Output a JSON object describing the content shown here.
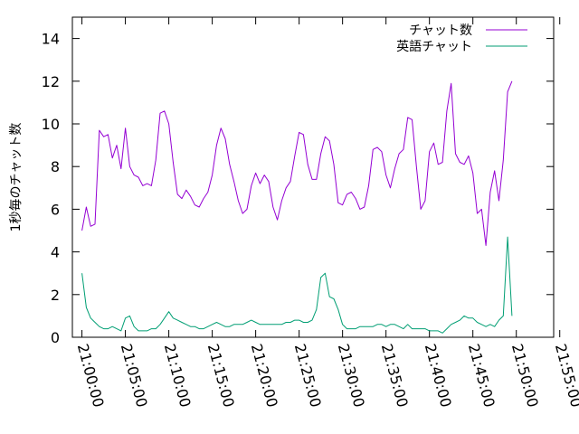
{
  "chart_data": {
    "type": "line",
    "ylabel": "1秒毎のチャット数",
    "ylim": [
      0,
      15
    ],
    "yticks": [
      0,
      2,
      4,
      6,
      8,
      10,
      12,
      14
    ],
    "xticks": [
      "21:00:00",
      "21:05:00",
      "21:10:00",
      "21:15:00",
      "21:20:00",
      "21:25:00",
      "21:30:00",
      "21:35:00",
      "21:40:00",
      "21:45:00",
      "21:50:00",
      "21:55:00"
    ],
    "xlim_minutes": [
      -1.1,
      54.3
    ],
    "x_unit": "minutes after 21:00:00",
    "grid": false,
    "legend_position": "top-right",
    "series": [
      {
        "name": "チャット数",
        "color": "#9400d3",
        "points": [
          [
            0.0,
            5.0
          ],
          [
            0.5,
            6.1
          ],
          [
            1.0,
            5.2
          ],
          [
            1.5,
            5.3
          ],
          [
            2.0,
            9.7
          ],
          [
            2.5,
            9.4
          ],
          [
            3.0,
            9.5
          ],
          [
            3.5,
            8.4
          ],
          [
            4.0,
            9.0
          ],
          [
            4.5,
            7.9
          ],
          [
            5.0,
            9.8
          ],
          [
            5.5,
            8.0
          ],
          [
            6.0,
            7.6
          ],
          [
            6.5,
            7.5
          ],
          [
            7.0,
            7.1
          ],
          [
            7.5,
            7.2
          ],
          [
            8.0,
            7.1
          ],
          [
            8.5,
            8.3
          ],
          [
            9.0,
            10.5
          ],
          [
            9.5,
            10.6
          ],
          [
            10.0,
            10.0
          ],
          [
            10.5,
            8.2
          ],
          [
            11.0,
            6.7
          ],
          [
            11.5,
            6.5
          ],
          [
            12.0,
            6.9
          ],
          [
            12.5,
            6.6
          ],
          [
            13.0,
            6.2
          ],
          [
            13.5,
            6.1
          ],
          [
            14.0,
            6.5
          ],
          [
            14.5,
            6.8
          ],
          [
            15.0,
            7.6
          ],
          [
            15.5,
            9.0
          ],
          [
            16.0,
            9.8
          ],
          [
            16.5,
            9.3
          ],
          [
            17.0,
            8.1
          ],
          [
            17.5,
            7.3
          ],
          [
            18.0,
            6.4
          ],
          [
            18.5,
            5.8
          ],
          [
            19.0,
            6.0
          ],
          [
            19.5,
            7.1
          ],
          [
            20.0,
            7.7
          ],
          [
            20.5,
            7.2
          ],
          [
            21.0,
            7.6
          ],
          [
            21.5,
            7.3
          ],
          [
            22.0,
            6.1
          ],
          [
            22.5,
            5.5
          ],
          [
            23.0,
            6.4
          ],
          [
            23.5,
            7.0
          ],
          [
            24.0,
            7.3
          ],
          [
            24.5,
            8.5
          ],
          [
            25.0,
            9.6
          ],
          [
            25.5,
            9.5
          ],
          [
            26.0,
            8.1
          ],
          [
            26.5,
            7.4
          ],
          [
            27.0,
            7.4
          ],
          [
            27.5,
            8.6
          ],
          [
            28.0,
            9.4
          ],
          [
            28.5,
            9.2
          ],
          [
            29.0,
            8.1
          ],
          [
            29.5,
            6.3
          ],
          [
            30.0,
            6.2
          ],
          [
            30.5,
            6.7
          ],
          [
            31.0,
            6.8
          ],
          [
            31.5,
            6.5
          ],
          [
            32.0,
            6.0
          ],
          [
            32.5,
            6.1
          ],
          [
            33.0,
            7.1
          ],
          [
            33.5,
            8.8
          ],
          [
            34.0,
            8.9
          ],
          [
            34.5,
            8.7
          ],
          [
            35.0,
            7.6
          ],
          [
            35.5,
            7.0
          ],
          [
            36.0,
            7.9
          ],
          [
            36.5,
            8.6
          ],
          [
            37.0,
            8.8
          ],
          [
            37.5,
            10.3
          ],
          [
            38.0,
            10.2
          ],
          [
            38.5,
            8.0
          ],
          [
            39.0,
            6.0
          ],
          [
            39.5,
            6.4
          ],
          [
            40.0,
            8.7
          ],
          [
            40.5,
            9.1
          ],
          [
            41.0,
            8.1
          ],
          [
            41.5,
            8.2
          ],
          [
            42.0,
            10.6
          ],
          [
            42.5,
            11.9
          ],
          [
            43.0,
            8.6
          ],
          [
            43.5,
            8.2
          ],
          [
            44.0,
            8.1
          ],
          [
            44.5,
            8.5
          ],
          [
            45.0,
            7.7
          ],
          [
            45.5,
            5.8
          ],
          [
            46.0,
            6.0
          ],
          [
            46.5,
            4.3
          ],
          [
            47.0,
            6.8
          ],
          [
            47.5,
            7.8
          ],
          [
            48.0,
            6.4
          ],
          [
            48.5,
            8.3
          ],
          [
            49.0,
            11.5
          ],
          [
            49.5,
            12.0
          ]
        ]
      },
      {
        "name": "英語チャット",
        "color": "#009e73",
        "points": [
          [
            0.0,
            3.0
          ],
          [
            0.5,
            1.4
          ],
          [
            1.0,
            0.9
          ],
          [
            1.5,
            0.7
          ],
          [
            2.0,
            0.5
          ],
          [
            2.5,
            0.4
          ],
          [
            3.0,
            0.4
          ],
          [
            3.5,
            0.5
          ],
          [
            4.0,
            0.4
          ],
          [
            4.5,
            0.3
          ],
          [
            5.0,
            0.9
          ],
          [
            5.5,
            1.0
          ],
          [
            6.0,
            0.5
          ],
          [
            6.5,
            0.3
          ],
          [
            7.0,
            0.3
          ],
          [
            7.5,
            0.3
          ],
          [
            8.0,
            0.4
          ],
          [
            8.5,
            0.4
          ],
          [
            9.0,
            0.6
          ],
          [
            9.5,
            0.9
          ],
          [
            10.0,
            1.2
          ],
          [
            10.5,
            0.9
          ],
          [
            11.0,
            0.8
          ],
          [
            11.5,
            0.7
          ],
          [
            12.0,
            0.6
          ],
          [
            12.5,
            0.5
          ],
          [
            13.0,
            0.5
          ],
          [
            13.5,
            0.4
          ],
          [
            14.0,
            0.4
          ],
          [
            14.5,
            0.5
          ],
          [
            15.0,
            0.6
          ],
          [
            15.5,
            0.7
          ],
          [
            16.0,
            0.6
          ],
          [
            16.5,
            0.5
          ],
          [
            17.0,
            0.5
          ],
          [
            17.5,
            0.6
          ],
          [
            18.0,
            0.6
          ],
          [
            18.5,
            0.6
          ],
          [
            19.0,
            0.7
          ],
          [
            19.5,
            0.8
          ],
          [
            20.0,
            0.7
          ],
          [
            20.5,
            0.6
          ],
          [
            21.0,
            0.6
          ],
          [
            21.5,
            0.6
          ],
          [
            22.0,
            0.6
          ],
          [
            22.5,
            0.6
          ],
          [
            23.0,
            0.6
          ],
          [
            23.5,
            0.7
          ],
          [
            24.0,
            0.7
          ],
          [
            24.5,
            0.8
          ],
          [
            25.0,
            0.8
          ],
          [
            25.5,
            0.7
          ],
          [
            26.0,
            0.7
          ],
          [
            26.5,
            0.8
          ],
          [
            27.0,
            1.3
          ],
          [
            27.5,
            2.8
          ],
          [
            28.0,
            3.0
          ],
          [
            28.5,
            1.9
          ],
          [
            29.0,
            1.8
          ],
          [
            29.5,
            1.3
          ],
          [
            30.0,
            0.6
          ],
          [
            30.5,
            0.4
          ],
          [
            31.0,
            0.4
          ],
          [
            31.5,
            0.4
          ],
          [
            32.0,
            0.5
          ],
          [
            32.5,
            0.5
          ],
          [
            33.0,
            0.5
          ],
          [
            33.5,
            0.5
          ],
          [
            34.0,
            0.6
          ],
          [
            34.5,
            0.6
          ],
          [
            35.0,
            0.5
          ],
          [
            35.5,
            0.6
          ],
          [
            36.0,
            0.6
          ],
          [
            36.5,
            0.5
          ],
          [
            37.0,
            0.4
          ],
          [
            37.5,
            0.6
          ],
          [
            38.0,
            0.4
          ],
          [
            38.5,
            0.4
          ],
          [
            39.0,
            0.4
          ],
          [
            39.5,
            0.4
          ],
          [
            40.0,
            0.3
          ],
          [
            40.5,
            0.3
          ],
          [
            41.0,
            0.3
          ],
          [
            41.5,
            0.2
          ],
          [
            42.0,
            0.4
          ],
          [
            42.5,
            0.6
          ],
          [
            43.0,
            0.7
          ],
          [
            43.5,
            0.8
          ],
          [
            44.0,
            1.0
          ],
          [
            44.5,
            0.9
          ],
          [
            45.0,
            0.9
          ],
          [
            45.5,
            0.7
          ],
          [
            46.0,
            0.6
          ],
          [
            46.5,
            0.5
          ],
          [
            47.0,
            0.6
          ],
          [
            47.5,
            0.5
          ],
          [
            48.0,
            0.8
          ],
          [
            48.5,
            1.0
          ],
          [
            49.0,
            4.7
          ],
          [
            49.5,
            1.0
          ]
        ]
      }
    ]
  }
}
